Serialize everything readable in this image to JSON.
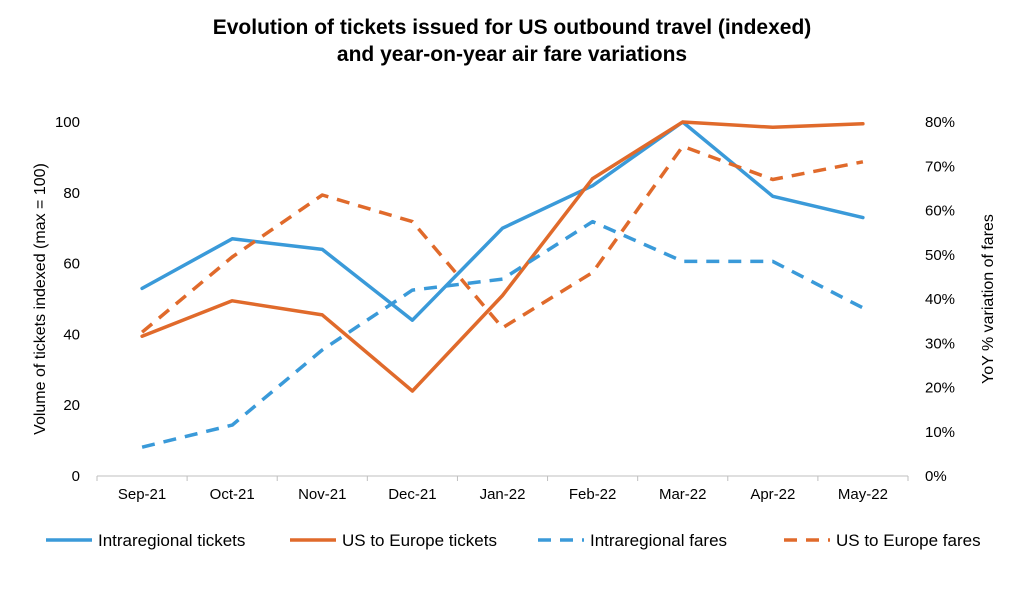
{
  "chart_data": {
    "type": "line",
    "title_lines": [
      "Evolution of tickets issued for US outbound travel (indexed)",
      "and year-on-year air fare variations"
    ],
    "categories": [
      "Sep-21",
      "Oct-21",
      "Nov-21",
      "Dec-21",
      "Jan-22",
      "Feb-22",
      "Mar-22",
      "Apr-22",
      "May-22"
    ],
    "ylabel": "Volume of tickets indexed (max = 100)",
    "y2label": "YoY % variation of fares",
    "ylim": [
      0,
      100
    ],
    "y2lim": [
      0,
      80
    ],
    "yticks": [
      0,
      20,
      40,
      60,
      80,
      100
    ],
    "y2ticks": [
      0,
      10,
      20,
      30,
      40,
      50,
      60,
      70,
      80
    ],
    "y2_tick_suffix": "%",
    "grid": false,
    "legend_position": "bottom",
    "series": [
      {
        "name": "Intraregional tickets",
        "axis": "left",
        "style": "solid",
        "color": "#3a9ad9",
        "values": [
          53,
          67,
          64,
          44,
          70,
          82,
          100,
          79,
          73
        ]
      },
      {
        "name": "US to Europe tickets",
        "axis": "left",
        "style": "solid",
        "color": "#e06a2b",
        "values": [
          39.5,
          49.5,
          45.5,
          24,
          51,
          84,
          100,
          98.5,
          99.5
        ]
      },
      {
        "name": "Intraregional fares",
        "axis": "right",
        "style": "dashed",
        "color": "#3a9ad9",
        "values": [
          6.5,
          11.5,
          28.5,
          42,
          44.5,
          57.5,
          48.5,
          48.5,
          38
        ]
      },
      {
        "name": "US to Europe fares",
        "axis": "right",
        "style": "dashed",
        "color": "#e06a2b",
        "values": [
          32.5,
          49.5,
          63.5,
          57.5,
          33.5,
          46,
          74.5,
          67,
          71
        ]
      }
    ]
  }
}
